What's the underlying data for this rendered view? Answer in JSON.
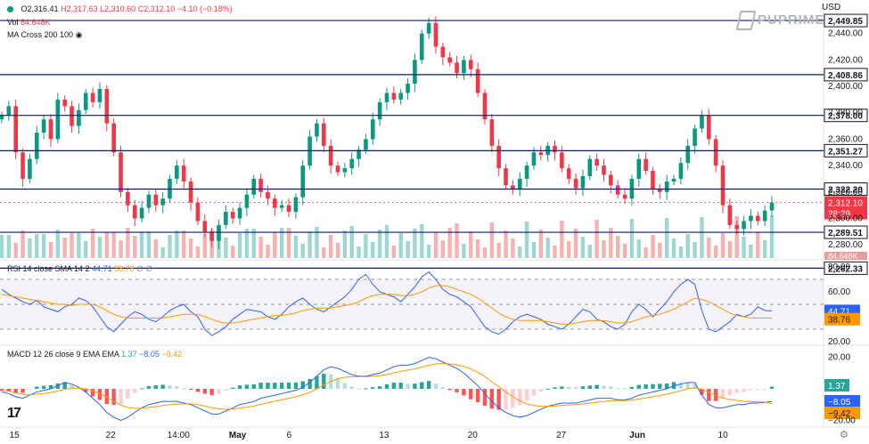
{
  "header": {
    "ohlc": {
      "o": "O2,316.41",
      "h": "H2,317.63",
      "l": "L2,310.60",
      "c": "C2,312.10",
      "chg": "−4.10 (−0.18%)"
    },
    "vol_label": "Vol",
    "vol_value": "84.648K",
    "ma_label": "MA Cross 200 100",
    "currency": "USD",
    "brand": "PUPRIME"
  },
  "chart_data": [
    {
      "type": "line",
      "panel": "price",
      "y_ticks": [
        "2,440.00",
        "2,420.00",
        "2,400.00",
        "2,380.00",
        "2,360.00",
        "2,340.00",
        "2,320.00",
        "2,300.00",
        "2,280.00"
      ],
      "ylim": [
        2270,
        2460
      ],
      "levels": [
        {
          "value": 2449.85,
          "label": "2,449.85"
        },
        {
          "value": 2408.86,
          "label": "2,408.86"
        },
        {
          "value": 2378.0,
          "label": "2,378.00"
        },
        {
          "value": 2351.27,
          "label": "2,351.27"
        },
        {
          "value": 2322.2,
          "label": "2,322.20"
        },
        {
          "value": 2289.51,
          "label": "2,289.51"
        },
        {
          "value": 2262.33,
          "label": "2,262.33"
        }
      ],
      "last_price": {
        "value": 2312.1,
        "label": "2,312.10",
        "countdown": "28:29"
      },
      "volume_label": "84.648K",
      "x_ticks": [
        "15",
        "22",
        "14:00",
        "May",
        "6",
        "13",
        "20",
        "27",
        "Jun",
        "10"
      ],
      "series": [
        {
          "values": [
            2378,
            2385,
            2350,
            2330,
            2345,
            2365,
            2375,
            2360,
            2390,
            2385,
            2370,
            2382,
            2395,
            2388,
            2398,
            2372,
            2350,
            2320,
            2310,
            2300,
            2308,
            2318,
            2310,
            2315,
            2330,
            2340,
            2328,
            2312,
            2298,
            2290,
            2283,
            2295,
            2305,
            2300,
            2308,
            2318,
            2330,
            2320,
            2315,
            2308,
            2310,
            2305,
            2316,
            2340,
            2362,
            2372,
            2355,
            2340,
            2335,
            2338,
            2345,
            2352,
            2360,
            2375,
            2388,
            2395,
            2390,
            2395,
            2402,
            2420,
            2440,
            2448,
            2430,
            2422,
            2418,
            2410,
            2420,
            2413,
            2395,
            2375,
            2355,
            2338,
            2325,
            2322,
            2330,
            2340,
            2350,
            2348,
            2355,
            2350,
            2338,
            2330,
            2323,
            2332,
            2345,
            2340,
            2333,
            2325,
            2318,
            2315,
            2330,
            2345,
            2336,
            2322,
            2320,
            2328,
            2330,
            2342,
            2355,
            2368,
            2378,
            2360,
            2340,
            2310,
            2295,
            2292,
            2298,
            2302,
            2298,
            2306,
            2312
          ]
        }
      ]
    },
    {
      "type": "line",
      "panel": "rsi",
      "legend": "RSI 14 close SMA 14 2",
      "values_label": {
        "rsi": "44.71",
        "sma": "38.76"
      },
      "y_ticks": [
        "80.00",
        "60.00",
        "20.00"
      ],
      "ylim": [
        20,
        80
      ],
      "rsi_values": [
        62,
        58,
        55,
        52,
        50,
        53,
        48,
        46,
        44,
        48,
        50,
        55,
        53,
        48,
        40,
        32,
        28,
        34,
        40,
        44,
        42,
        38,
        36,
        40,
        45,
        48,
        50,
        44,
        40,
        30,
        25,
        28,
        32,
        38,
        42,
        46,
        45,
        44,
        40,
        38,
        42,
        48,
        52,
        55,
        50,
        46,
        44,
        48,
        52,
        56,
        62,
        70,
        74,
        66,
        60,
        58,
        56,
        52,
        58,
        64,
        72,
        76,
        70,
        62,
        58,
        56,
        52,
        48,
        40,
        32,
        28,
        26,
        30,
        36,
        40,
        42,
        40,
        38,
        34,
        32,
        30,
        34,
        40,
        46,
        44,
        38,
        36,
        32,
        30,
        34,
        44,
        50,
        46,
        40,
        46,
        52,
        60,
        66,
        70,
        66,
        45,
        30,
        28,
        32,
        36,
        42,
        40,
        42,
        48,
        45,
        44.71
      ],
      "sma_values": [
        58,
        57,
        56,
        55,
        54,
        53,
        52,
        51,
        50,
        50,
        49,
        50,
        50,
        50,
        48,
        45,
        42,
        40,
        39,
        39,
        39,
        39,
        39,
        39,
        40,
        41,
        42,
        42,
        42,
        40,
        38,
        36,
        35,
        35,
        36,
        37,
        38,
        39,
        40,
        41,
        41,
        42,
        43,
        45,
        46,
        47,
        47,
        47,
        48,
        49,
        50,
        52,
        55,
        57,
        58,
        58,
        58,
        57,
        57,
        58,
        60,
        63,
        65,
        65,
        64,
        62,
        60,
        58,
        55,
        51,
        47,
        43,
        40,
        38,
        37,
        37,
        37,
        37,
        36,
        35,
        34,
        34,
        35,
        36,
        37,
        37,
        37,
        36,
        35,
        35,
        36,
        38,
        40,
        41,
        42,
        44,
        46,
        49,
        52,
        55,
        54,
        52,
        49,
        46,
        43,
        41,
        40,
        39,
        39,
        39,
        38.76
      ]
    },
    {
      "type": "bar",
      "panel": "macd",
      "legend": "MACD 12 26 close 9 EMA EMA",
      "values_label": {
        "hist": "1.37",
        "macd": "−8.05",
        "signal": "−9.42"
      },
      "y_ticks": [
        "20.00",
        "−20.00"
      ],
      "ylim": [
        -22,
        22
      ],
      "macd_values": [
        -2,
        -3,
        -5,
        -6,
        -4,
        -2,
        -1,
        0,
        2,
        4,
        3,
        1,
        -2,
        -6,
        -10,
        -15,
        -18,
        -20,
        -18,
        -15,
        -12,
        -10,
        -9,
        -8,
        -8,
        -8,
        -9,
        -10,
        -12,
        -14,
        -16,
        -16,
        -14,
        -12,
        -10,
        -9,
        -8,
        -6,
        -5,
        -4,
        -3,
        -2,
        -1,
        1,
        4,
        8,
        12,
        14,
        13,
        11,
        9,
        8,
        8,
        9,
        10,
        12,
        14,
        15,
        15,
        16,
        18,
        20,
        19,
        17,
        15,
        13,
        10,
        6,
        2,
        -3,
        -8,
        -12,
        -15,
        -17,
        -18,
        -17,
        -15,
        -13,
        -11,
        -10,
        -9,
        -9,
        -9,
        -8,
        -7,
        -6,
        -6,
        -6,
        -7,
        -7,
        -6,
        -4,
        -3,
        -2,
        -1,
        0,
        2,
        3,
        4,
        4,
        -4,
        -10,
        -12,
        -12,
        -11,
        -10,
        -10,
        -9,
        -9,
        -8.5,
        -8.05
      ],
      "signal_values": [
        -1,
        -1.5,
        -2.5,
        -3.5,
        -3.8,
        -3.4,
        -2.9,
        -2.3,
        -1.4,
        -0.3,
        0.4,
        0.5,
        0,
        -1.2,
        -3,
        -5.4,
        -7.9,
        -10.3,
        -11.8,
        -12.4,
        -12.3,
        -11.8,
        -11.3,
        -10.6,
        -10.1,
        -9.7,
        -9.5,
        -9.6,
        -10.1,
        -10.9,
        -11.9,
        -12.7,
        -13,
        -12.8,
        -12.2,
        -11.6,
        -10.9,
        -9.9,
        -8.9,
        -7.9,
        -7,
        -6,
        -5,
        -3.8,
        -2.2,
        0,
        2.4,
        4.7,
        6.4,
        7.3,
        7.6,
        7.7,
        7.7,
        8,
        8.4,
        9.1,
        10.1,
        11.1,
        11.9,
        12.7,
        13.8,
        15,
        15.8,
        16,
        15.8,
        15.2,
        14.2,
        12.6,
        10.5,
        7.8,
        4.6,
        1.3,
        -2,
        -5,
        -7.6,
        -9.5,
        -10.6,
        -11.1,
        -11.1,
        -10.9,
        -10.5,
        -10.2,
        -10,
        -9.6,
        -9.1,
        -8.5,
        -8,
        -7.6,
        -7.5,
        -7.4,
        -7.1,
        -6.5,
        -5.8,
        -5,
        -4.2,
        -3.4,
        -2.3,
        -1.2,
        0,
        0.8,
        -0.2,
        -2.2,
        -4.2,
        -5.8,
        -6.8,
        -7.4,
        -7.9,
        -8.1,
        -8.3,
        -8.3,
        -9.42
      ]
    }
  ]
}
